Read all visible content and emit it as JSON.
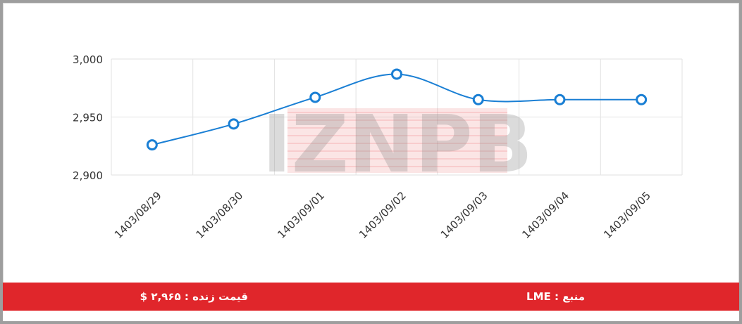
{
  "chart_data": {
    "type": "line",
    "categories": [
      "1403/08/29",
      "1403/08/30",
      "1403/09/01",
      "1403/09/02",
      "1403/09/03",
      "1403/09/04",
      "1403/09/05"
    ],
    "values": [
      2926,
      2944,
      2967,
      2987,
      2965,
      2965,
      2965
    ],
    "ylim": [
      2900,
      3000
    ],
    "yticks": [
      "2,900",
      "2,950",
      "3,000"
    ],
    "grid": true,
    "line_color": "#1a7fd4",
    "title": "",
    "xlabel": "",
    "ylabel": ""
  },
  "watermark": {
    "text": "IZNPB",
    "color": "#e0262b"
  },
  "footer": {
    "live_price": "قیمت زنده : ۲,۹۶۵ $",
    "source": "منبع : LME",
    "background": "#e0262b"
  }
}
